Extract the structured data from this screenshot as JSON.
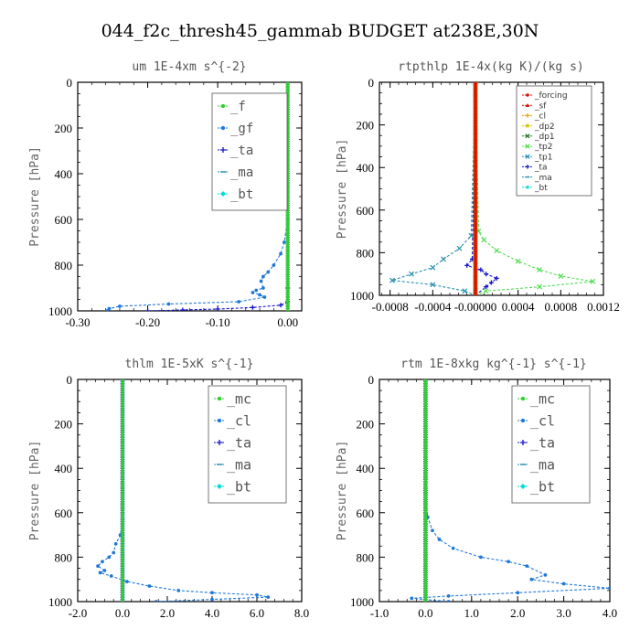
{
  "figure_title": "044_f2c_thresh45_gammab  BUDGET at238E,30N",
  "colors": {
    "green": "#33cc33",
    "blue": "#1e78d8",
    "navy": "#1010cc",
    "red": "#dd1100",
    "orange": "#e8a000",
    "yellow": "#d8c400",
    "darkgreen": "#227722",
    "lightgreen": "#55dd55",
    "teal": "#2a8fb0",
    "cyan": "#00dddd",
    "axis": "#000000"
  },
  "chart_data": [
    {
      "type": "line",
      "title": "um  1E-4xm s^{-2}",
      "ylabel": "Pressure [hPa]",
      "xlim": [
        -0.3,
        0.02
      ],
      "ylim": [
        1000,
        0
      ],
      "xticks": [
        -0.3,
        -0.2,
        -0.1,
        0.0
      ],
      "xtick_labels": [
        "-0.30",
        "-0.20",
        "-0.10",
        "0.00"
      ],
      "yticks": [
        0,
        200,
        400,
        600,
        800,
        1000
      ],
      "ytick_labels": [
        "0",
        "200",
        "400",
        "600",
        "800",
        "1000"
      ],
      "grid": false,
      "legend_position": "top-right",
      "legend_style": "boxed",
      "series": [
        {
          "name": "_f",
          "color": "green",
          "marker": "circle",
          "x": [
            0,
            0,
            0,
            0,
            0,
            0,
            0,
            0,
            0,
            0,
            0
          ],
          "y": [
            0,
            100,
            200,
            300,
            400,
            500,
            600,
            700,
            800,
            900,
            1000
          ]
        },
        {
          "name": "_gf",
          "color": "blue",
          "marker": "circle",
          "x": [
            0,
            0,
            -0.005,
            -0.01,
            -0.02,
            -0.028,
            -0.035,
            -0.038,
            -0.035,
            -0.045,
            -0.05,
            -0.04,
            -0.033,
            -0.07,
            -0.17,
            -0.24,
            -0.255,
            -0.258
          ],
          "y": [
            0,
            600,
            700,
            750,
            800,
            830,
            850,
            870,
            900,
            910,
            920,
            930,
            940,
            960,
            970,
            980,
            990,
            1000
          ]
        },
        {
          "name": "_ta",
          "color": "navy",
          "marker": "plus",
          "x": [
            0,
            0,
            0,
            -0.01,
            -0.05,
            -0.1,
            -0.15,
            -0.2
          ],
          "y": [
            0,
            900,
            960,
            975,
            985,
            992,
            996,
            1000
          ]
        },
        {
          "name": "_ma",
          "color": "teal",
          "marker": "dash",
          "x": [
            0,
            0
          ],
          "y": [
            0,
            1000
          ]
        },
        {
          "name": "_bt",
          "color": "cyan",
          "marker": "diamond",
          "x": [
            0,
            0
          ],
          "y": [
            0,
            1000
          ]
        }
      ]
    },
    {
      "type": "line",
      "title": "rtpthlp  1E-4x(kg K)/(kg s)",
      "ylabel": "Pressure [hPa]",
      "xlim": [
        -0.0009,
        0.0012
      ],
      "ylim": [
        1000,
        0
      ],
      "xticks": [
        -0.0008,
        -0.0004,
        0.0,
        0.0004,
        0.0008,
        0.0012
      ],
      "xtick_labels": [
        "-0.0008",
        "-0.0004",
        "-0.00000",
        "0.0004",
        "0.0008",
        "0.0012"
      ],
      "yticks": [
        0,
        200,
        400,
        600,
        800,
        1000
      ],
      "ytick_labels": [
        "0",
        "200",
        "400",
        "600",
        "800",
        "1000"
      ],
      "grid": false,
      "legend_position": "top-right",
      "legend_style": "boxed-small",
      "series": [
        {
          "name": "_forcing",
          "color": "red",
          "marker": "circle",
          "x": [
            0,
            0
          ],
          "y": [
            0,
            1000
          ]
        },
        {
          "name": "_sf",
          "color": "red",
          "marker": "tri",
          "x": [
            0,
            0
          ],
          "y": [
            0,
            1000
          ]
        },
        {
          "name": "_cl",
          "color": "orange",
          "marker": "plus",
          "x": [
            0,
            0
          ],
          "y": [
            0,
            1000
          ]
        },
        {
          "name": "_dp2",
          "color": "yellow",
          "marker": "star",
          "x": [
            0,
            0
          ],
          "y": [
            0,
            1000
          ]
        },
        {
          "name": "_dp1",
          "color": "darkgreen",
          "marker": "cross",
          "x": [
            0,
            0
          ],
          "y": [
            0,
            1000
          ]
        },
        {
          "name": "_tp2",
          "color": "lightgreen",
          "marker": "cross",
          "x": [
            0,
            3e-05,
            8e-05,
            0.0002,
            0.0004,
            0.0006,
            0.0008,
            0.0011,
            0.0006,
            0.0001,
            0
          ],
          "y": [
            0,
            700,
            740,
            790,
            840,
            880,
            910,
            935,
            960,
            980,
            1000
          ]
        },
        {
          "name": "_tp1",
          "color": "teal",
          "marker": "cross",
          "x": [
            0,
            -4e-05,
            -0.00015,
            -0.0003,
            -0.0004,
            -0.0006,
            -0.00078,
            -0.0004,
            -0.0001,
            0
          ],
          "y": [
            0,
            720,
            780,
            830,
            870,
            900,
            930,
            950,
            980,
            1000
          ]
        },
        {
          "name": "_ta",
          "color": "navy",
          "marker": "plus",
          "x": [
            0,
            -3e-05,
            -8e-05,
            5e-05,
            0.0001,
            0.0002,
            0.00015,
            0.0001,
            0
          ],
          "y": [
            0,
            830,
            860,
            880,
            900,
            920,
            940,
            960,
            1000
          ]
        },
        {
          "name": "_ma",
          "color": "teal",
          "marker": "dash",
          "x": [
            0,
            0
          ],
          "y": [
            0,
            1000
          ]
        },
        {
          "name": "_bt",
          "color": "cyan",
          "marker": "diamond",
          "x": [
            0,
            0
          ],
          "y": [
            0,
            1000
          ]
        }
      ]
    },
    {
      "type": "line",
      "title": "thlm  1E-5xK s^{-1}",
      "ylabel": "Pressure [hPa]",
      "xlim": [
        -2.0,
        8.0
      ],
      "ylim": [
        1000,
        0
      ],
      "xticks": [
        -2,
        0,
        2,
        4,
        6,
        8
      ],
      "xtick_labels": [
        "-2.0",
        "0.0",
        "2.0",
        "4.0",
        "6.0",
        "8.0"
      ],
      "yticks": [
        0,
        200,
        400,
        600,
        800,
        1000
      ],
      "ytick_labels": [
        "0",
        "200",
        "400",
        "600",
        "800",
        "1000"
      ],
      "grid": false,
      "legend_position": "top-right",
      "legend_style": "boxed",
      "series": [
        {
          "name": "_mc",
          "color": "green",
          "marker": "circle",
          "x": [
            0,
            0,
            0,
            0,
            0,
            0,
            0,
            0,
            0,
            0,
            0
          ],
          "y": [
            0,
            100,
            200,
            300,
            400,
            500,
            600,
            700,
            800,
            900,
            1000
          ]
        },
        {
          "name": "_cl",
          "color": "blue",
          "marker": "circle",
          "x": [
            0,
            0,
            -0.1,
            -0.3,
            -0.4,
            -0.6,
            -0.9,
            -1.1,
            -0.8,
            -1.0,
            -0.5,
            0.2,
            1.2,
            2.5,
            4.0,
            6.0,
            6.5,
            4.0,
            1.5
          ],
          "y": [
            0,
            650,
            700,
            740,
            780,
            800,
            820,
            840,
            860,
            870,
            885,
            910,
            930,
            950,
            960,
            970,
            980,
            990,
            1000
          ]
        },
        {
          "name": "_ta",
          "color": "navy",
          "marker": "plus",
          "x": [
            0,
            0
          ],
          "y": [
            0,
            1000
          ]
        },
        {
          "name": "_ma",
          "color": "teal",
          "marker": "dash",
          "x": [
            0,
            0
          ],
          "y": [
            0,
            1000
          ]
        },
        {
          "name": "_bt",
          "color": "cyan",
          "marker": "diamond",
          "x": [
            0,
            0
          ],
          "y": [
            0,
            1000
          ]
        }
      ]
    },
    {
      "type": "line",
      "title": "rtm  1E-8xkg kg^{-1} s^{-1}",
      "ylabel": "Pressure [hPa]",
      "xlim": [
        -1.0,
        4.0
      ],
      "ylim": [
        1000,
        0
      ],
      "xticks": [
        -1,
        0,
        1,
        2,
        3,
        4
      ],
      "xtick_labels": [
        "-1.0",
        "0.0",
        "1.0",
        "2.0",
        "3.0",
        "4.0"
      ],
      "yticks": [
        0,
        200,
        400,
        600,
        800,
        1000
      ],
      "ytick_labels": [
        "0",
        "200",
        "400",
        "600",
        "800",
        "1000"
      ],
      "grid": false,
      "legend_position": "top-right",
      "legend_style": "boxed",
      "series": [
        {
          "name": "_mc",
          "color": "green",
          "marker": "circle",
          "x": [
            0,
            0,
            0,
            0,
            0,
            0,
            0,
            0,
            0,
            0,
            0
          ],
          "y": [
            0,
            100,
            200,
            300,
            400,
            500,
            600,
            700,
            800,
            900,
            1000
          ]
        },
        {
          "name": "_cl",
          "color": "blue",
          "marker": "circle",
          "x": [
            0,
            0,
            0.05,
            0.15,
            0.3,
            0.6,
            1.2,
            1.8,
            2.2,
            2.6,
            2.3,
            3.0,
            4.0,
            2.0,
            0.5,
            -0.3,
            0.5
          ],
          "y": [
            0,
            550,
            620,
            680,
            720,
            760,
            800,
            820,
            840,
            880,
            900,
            920,
            940,
            960,
            975,
            985,
            1000
          ]
        },
        {
          "name": "_ta",
          "color": "navy",
          "marker": "plus",
          "x": [
            0,
            0
          ],
          "y": [
            0,
            1000
          ]
        },
        {
          "name": "_ma",
          "color": "teal",
          "marker": "dash",
          "x": [
            0,
            0
          ],
          "y": [
            0,
            1000
          ]
        },
        {
          "name": "_bt",
          "color": "cyan",
          "marker": "diamond",
          "x": [
            0,
            0
          ],
          "y": [
            0,
            1000
          ]
        }
      ]
    }
  ]
}
